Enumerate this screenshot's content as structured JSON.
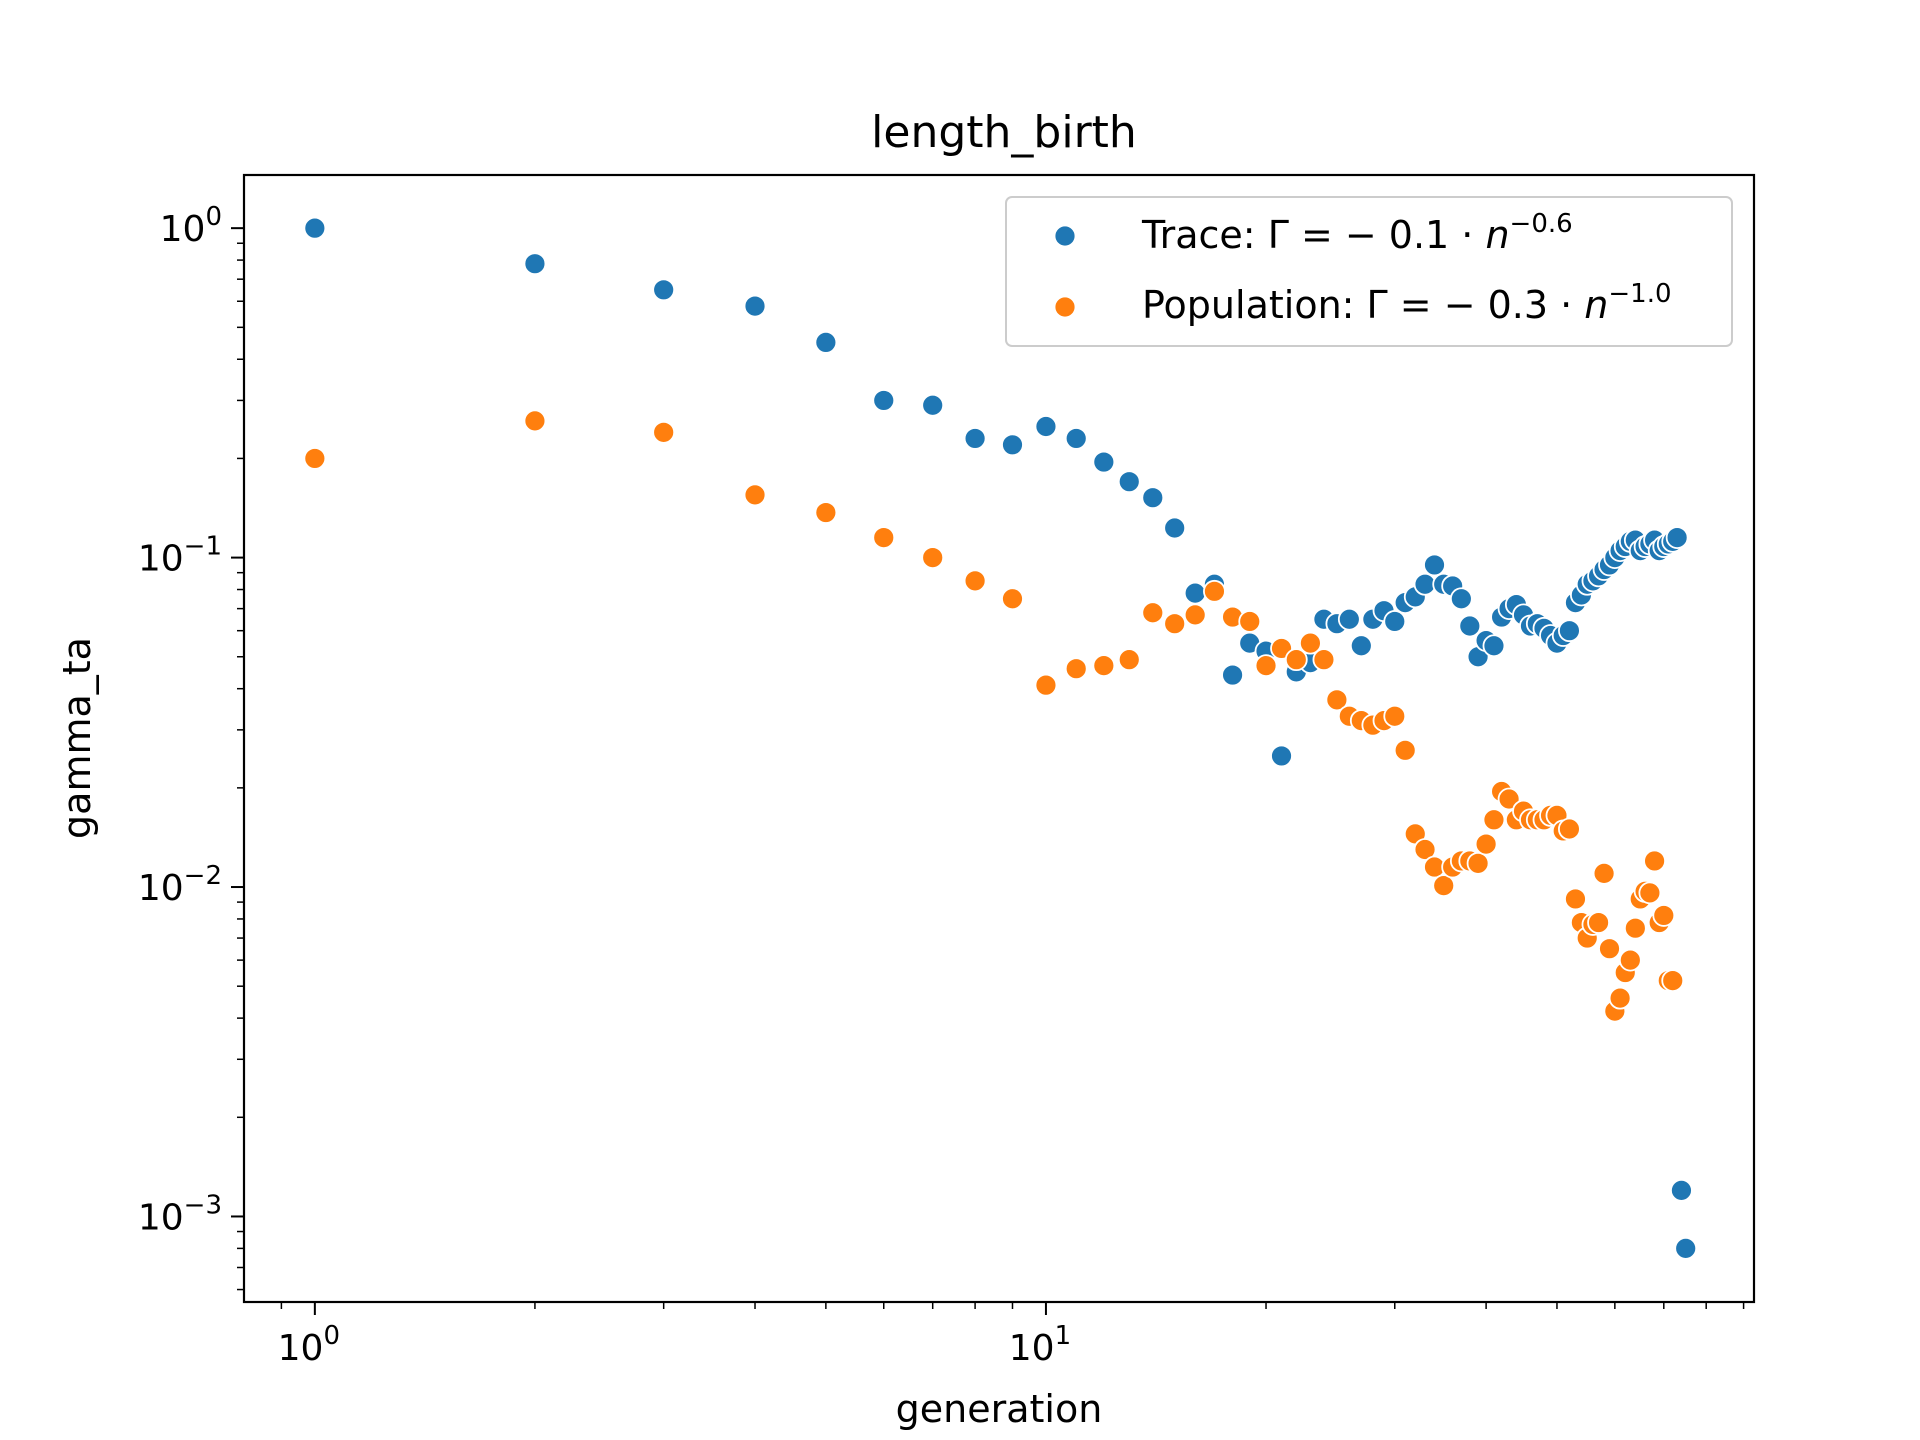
{
  "chart_data": {
    "type": "scatter",
    "title": "length_birth",
    "xlabel": "generation",
    "ylabel": "gamma_ta",
    "xscale": "log",
    "yscale": "log",
    "xlim": [
      0.8,
      93
    ],
    "ylim": [
      0.00055,
      1.45
    ],
    "grid": false,
    "legend_position": "upper-right",
    "x_ticks": [
      {
        "value": 1,
        "base": "10",
        "exp": "0"
      },
      {
        "value": 10,
        "base": "10",
        "exp": "1"
      }
    ],
    "y_ticks": [
      {
        "value": 1,
        "base": "10",
        "exp": "0"
      },
      {
        "value": 0.1,
        "base": "10",
        "exp": "−1"
      },
      {
        "value": 0.01,
        "base": "10",
        "exp": "−2"
      },
      {
        "value": 0.001,
        "base": "10",
        "exp": "−3"
      }
    ],
    "series": [
      {
        "name": "Trace",
        "legend_prefix": "Trace: Γ = − 0.1 · ",
        "legend_base": "n",
        "legend_exp": "−0.6",
        "color": "#1f77b4",
        "x": [
          1,
          2,
          3,
          4,
          5,
          6,
          7,
          8,
          9,
          10,
          11,
          12,
          13,
          14,
          15,
          16,
          17,
          18,
          19,
          20,
          21,
          22,
          23,
          24,
          25,
          26,
          27,
          28,
          29,
          30,
          31,
          32,
          33,
          34,
          35,
          36,
          37,
          38,
          39,
          40,
          41,
          42,
          43,
          44,
          45,
          46,
          47,
          48,
          49,
          50,
          51,
          52,
          53,
          54,
          55,
          56,
          57,
          58,
          59,
          60,
          61,
          62,
          63,
          64,
          65,
          66,
          67,
          68,
          69,
          70,
          71,
          72,
          73,
          74,
          75
        ],
        "y": [
          1.0,
          0.78,
          0.65,
          0.58,
          0.45,
          0.3,
          0.29,
          0.23,
          0.22,
          0.25,
          0.23,
          0.195,
          0.17,
          0.152,
          0.123,
          0.078,
          0.083,
          0.044,
          0.055,
          0.052,
          0.025,
          0.045,
          0.048,
          0.065,
          0.063,
          0.065,
          0.054,
          0.065,
          0.069,
          0.064,
          0.073,
          0.076,
          0.083,
          0.095,
          0.083,
          0.082,
          0.075,
          0.062,
          0.05,
          0.056,
          0.054,
          0.066,
          0.07,
          0.072,
          0.067,
          0.062,
          0.063,
          0.061,
          0.058,
          0.055,
          0.058,
          0.06,
          0.073,
          0.077,
          0.083,
          0.085,
          0.088,
          0.092,
          0.095,
          0.1,
          0.105,
          0.108,
          0.112,
          0.113,
          0.105,
          0.108,
          0.11,
          0.113,
          0.105,
          0.108,
          0.11,
          0.112,
          0.115,
          0.0012,
          0.0008
        ]
      },
      {
        "name": "Population",
        "legend_prefix": "Population: Γ = − 0.3 · ",
        "legend_base": "n",
        "legend_exp": "−1.0",
        "color": "#ff7f0e",
        "x": [
          1,
          2,
          3,
          4,
          5,
          6,
          7,
          8,
          9,
          10,
          11,
          12,
          13,
          14,
          15,
          16,
          17,
          18,
          19,
          20,
          21,
          22,
          23,
          24,
          25,
          26,
          27,
          28,
          29,
          30,
          31,
          32,
          33,
          34,
          35,
          36,
          37,
          38,
          39,
          40,
          41,
          42,
          43,
          44,
          45,
          46,
          47,
          48,
          49,
          50,
          51,
          52,
          53,
          54,
          55,
          56,
          57,
          58,
          59,
          60,
          61,
          62,
          63,
          64,
          65,
          66,
          67,
          68,
          69,
          70,
          71,
          72
        ],
        "y": [
          0.2,
          0.26,
          0.24,
          0.155,
          0.137,
          0.115,
          0.1,
          0.085,
          0.075,
          0.041,
          0.046,
          0.047,
          0.049,
          0.068,
          0.063,
          0.067,
          0.079,
          0.066,
          0.064,
          0.047,
          0.053,
          0.049,
          0.055,
          0.049,
          0.037,
          0.033,
          0.032,
          0.031,
          0.032,
          0.033,
          0.026,
          0.0145,
          0.013,
          0.0115,
          0.0101,
          0.0115,
          0.012,
          0.012,
          0.0118,
          0.0135,
          0.016,
          0.0195,
          0.0185,
          0.016,
          0.017,
          0.016,
          0.016,
          0.016,
          0.0165,
          0.0165,
          0.0148,
          0.015,
          0.0092,
          0.0078,
          0.007,
          0.0077,
          0.0078,
          0.011,
          0.0065,
          0.0042,
          0.0046,
          0.0055,
          0.006,
          0.0075,
          0.0092,
          0.0097,
          0.0096,
          0.012,
          0.0078,
          0.0082,
          0.0052,
          0.0052
        ]
      }
    ]
  }
}
